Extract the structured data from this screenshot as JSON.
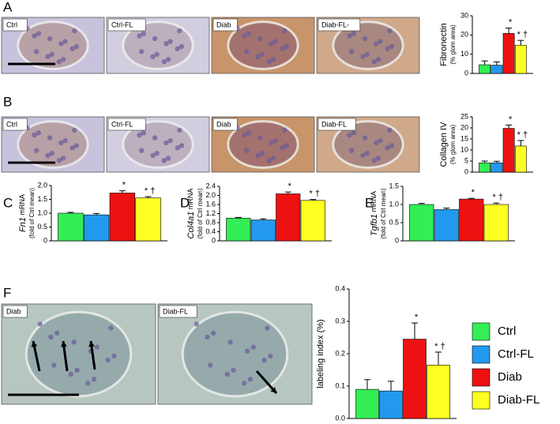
{
  "panel_letters": [
    "A",
    "B",
    "C",
    "D",
    "E",
    "F"
  ],
  "image_panels": [
    {
      "labels": [
        "Ctrl",
        "Ctrl-FL",
        "Diab",
        "Diab-FL-"
      ]
    },
    {
      "labels": [
        "Ctrl",
        "Ctrl-FL",
        "Diab",
        "Diab-FL"
      ]
    },
    {
      "labels": [
        "Diab",
        "Diab-FL"
      ]
    }
  ],
  "legend": {
    "names": [
      "Ctrl",
      "Ctrl-FL",
      "Diab",
      "Diab-FL"
    ],
    "colors": [
      "#33ee55",
      "#2299ee",
      "#ee1111",
      "#ffff22"
    ]
  },
  "chart_data": [
    {
      "type": "bar",
      "ylabel": "Fibronectin",
      "ylabel2": "(% glom area)",
      "values": [
        4.5,
        4.3,
        20.8,
        14.7
      ],
      "errors": [
        2.0,
        1.7,
        2.8,
        2.5
      ],
      "markers": [
        null,
        null,
        "*",
        "* †"
      ],
      "ylim": [
        0,
        30
      ],
      "yticks": [
        0,
        10,
        20,
        30
      ]
    },
    {
      "type": "bar",
      "ylabel": "Collagen IV",
      "ylabel2": "(% glom  area)",
      "values": [
        4.2,
        4.2,
        19.8,
        11.8
      ],
      "errors": [
        0.8,
        0.7,
        1.5,
        2.5
      ],
      "markers": [
        null,
        null,
        "*",
        "* †"
      ],
      "ylim": [
        0,
        25
      ],
      "yticks": [
        0,
        5,
        10,
        15,
        20,
        25
      ]
    },
    {
      "type": "bar",
      "ylabel_italic": "Fn1",
      "ylabel": " mRNA",
      "ylabel2": "(fold of Ctrl mean)",
      "values": [
        1.0,
        0.94,
        1.73,
        1.55
      ],
      "errors": [
        0.03,
        0.05,
        0.08,
        0.05
      ],
      "markers": [
        null,
        null,
        "*",
        "* †"
      ],
      "ylim": [
        0,
        2.0
      ],
      "yticks": [
        0,
        0.5,
        {
          "value": 1,
          "label": "1.0"
        },
        1.5,
        {
          "value": 2,
          "label": "2.0"
        }
      ]
    },
    {
      "type": "bar",
      "ylabel_italic": "Col4a1",
      "ylabel": " mRNA",
      "ylabel2": "(fold of Ctrl mean)",
      "values": [
        1.0,
        0.92,
        2.07,
        1.78
      ],
      "errors": [
        0.03,
        0.05,
        0.08,
        0.04
      ],
      "markers": [
        null,
        null,
        "*",
        "* †"
      ],
      "ylim": [
        0,
        2.4
      ],
      "yticks": [
        0,
        0.4,
        0.8,
        1.2,
        1.6,
        {
          "value": 2,
          "label": "2.0"
        },
        2.4
      ]
    },
    {
      "type": "bar",
      "ylabel_italic": "Tgfb1",
      "ylabel": " mRNA",
      "ylabel2": "(fold of Ctrl mean)",
      "values": [
        1.0,
        0.86,
        1.15,
        1.0
      ],
      "errors": [
        0.03,
        0.04,
        0.02,
        0.04
      ],
      "markers": [
        null,
        null,
        "*",
        "* †"
      ],
      "ylim": [
        0,
        1.5
      ],
      "yticks": [
        0,
        0.5,
        {
          "value": 1,
          "label": "1.0"
        },
        1.5
      ]
    },
    {
      "type": "bar",
      "ylabel": "labeling index (%)",
      "values": [
        0.09,
        0.085,
        0.245,
        0.165
      ],
      "errors": [
        0.03,
        0.03,
        0.05,
        0.04
      ],
      "markers": [
        null,
        null,
        "*",
        "* †"
      ],
      "ylim": [
        0,
        0.4
      ],
      "yticks": [
        {
          "value": 0,
          "label": "0.0"
        },
        0.1,
        0.2,
        0.3,
        0.4
      ]
    }
  ]
}
